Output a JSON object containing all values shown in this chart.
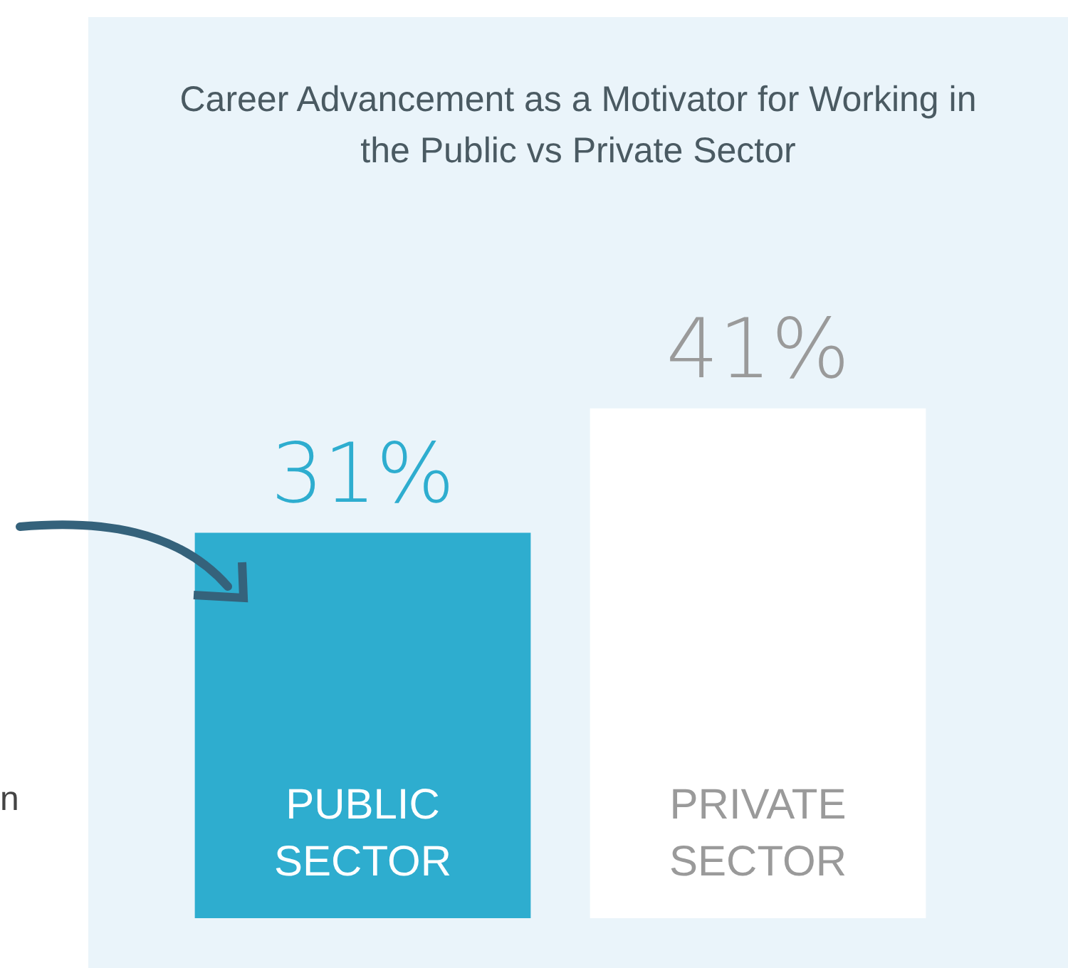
{
  "chart_data": {
    "type": "bar",
    "title": "Career Advancement as a Motivator for Working in the Public vs Private Sector",
    "categories": [
      "PUBLIC SECTOR",
      "PRIVATE SECTOR"
    ],
    "values": [
      31,
      41
    ],
    "colors": [
      "#2eadcf",
      "#ffffff"
    ],
    "value_labels": [
      "31%",
      "41%"
    ],
    "annotations": [
      "n"
    ]
  }
}
